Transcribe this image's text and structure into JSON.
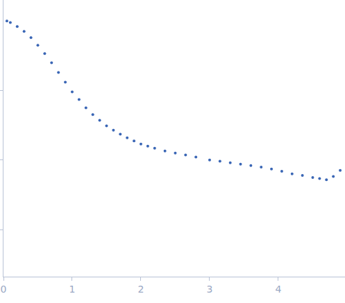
{
  "chart_data": {
    "type": "scatter",
    "log": "y",
    "tick_labels": "x",
    "grid": false,
    "marker": "circle",
    "color": "#3a66b5",
    "xlim": [
      0,
      4.97
    ],
    "xticks": [
      0,
      1,
      2,
      3,
      4
    ],
    "ylim": [
      0.00021,
      2.0
    ],
    "yticks": [
      0.001,
      0.01,
      0.1
    ],
    "x": [
      0.05,
      0.1,
      0.2,
      0.3,
      0.4,
      0.5,
      0.6,
      0.7,
      0.8,
      0.9,
      1.0,
      1.1,
      1.2,
      1.3,
      1.4,
      1.5,
      1.6,
      1.7,
      1.8,
      1.9,
      2.0,
      2.1,
      2.2,
      2.35,
      2.5,
      2.65,
      2.8,
      3.0,
      3.15,
      3.3,
      3.45,
      3.6,
      3.75,
      3.9,
      4.05,
      4.2,
      4.35,
      4.5,
      4.6,
      4.7,
      4.8,
      4.9
    ],
    "values": [
      1.0,
      0.95,
      0.83,
      0.708,
      0.575,
      0.447,
      0.34,
      0.251,
      0.182,
      0.132,
      0.0955,
      0.074,
      0.0562,
      0.045,
      0.0372,
      0.031,
      0.0269,
      0.0235,
      0.0209,
      0.0188,
      0.017,
      0.0158,
      0.0148,
      0.0135,
      0.0126,
      0.0118,
      0.011,
      0.01,
      0.0096,
      0.0091,
      0.0087,
      0.0083,
      0.0079,
      0.0074,
      0.0069,
      0.0063,
      0.006,
      0.0056,
      0.0054,
      0.0052,
      0.0058,
      0.0071
    ]
  }
}
